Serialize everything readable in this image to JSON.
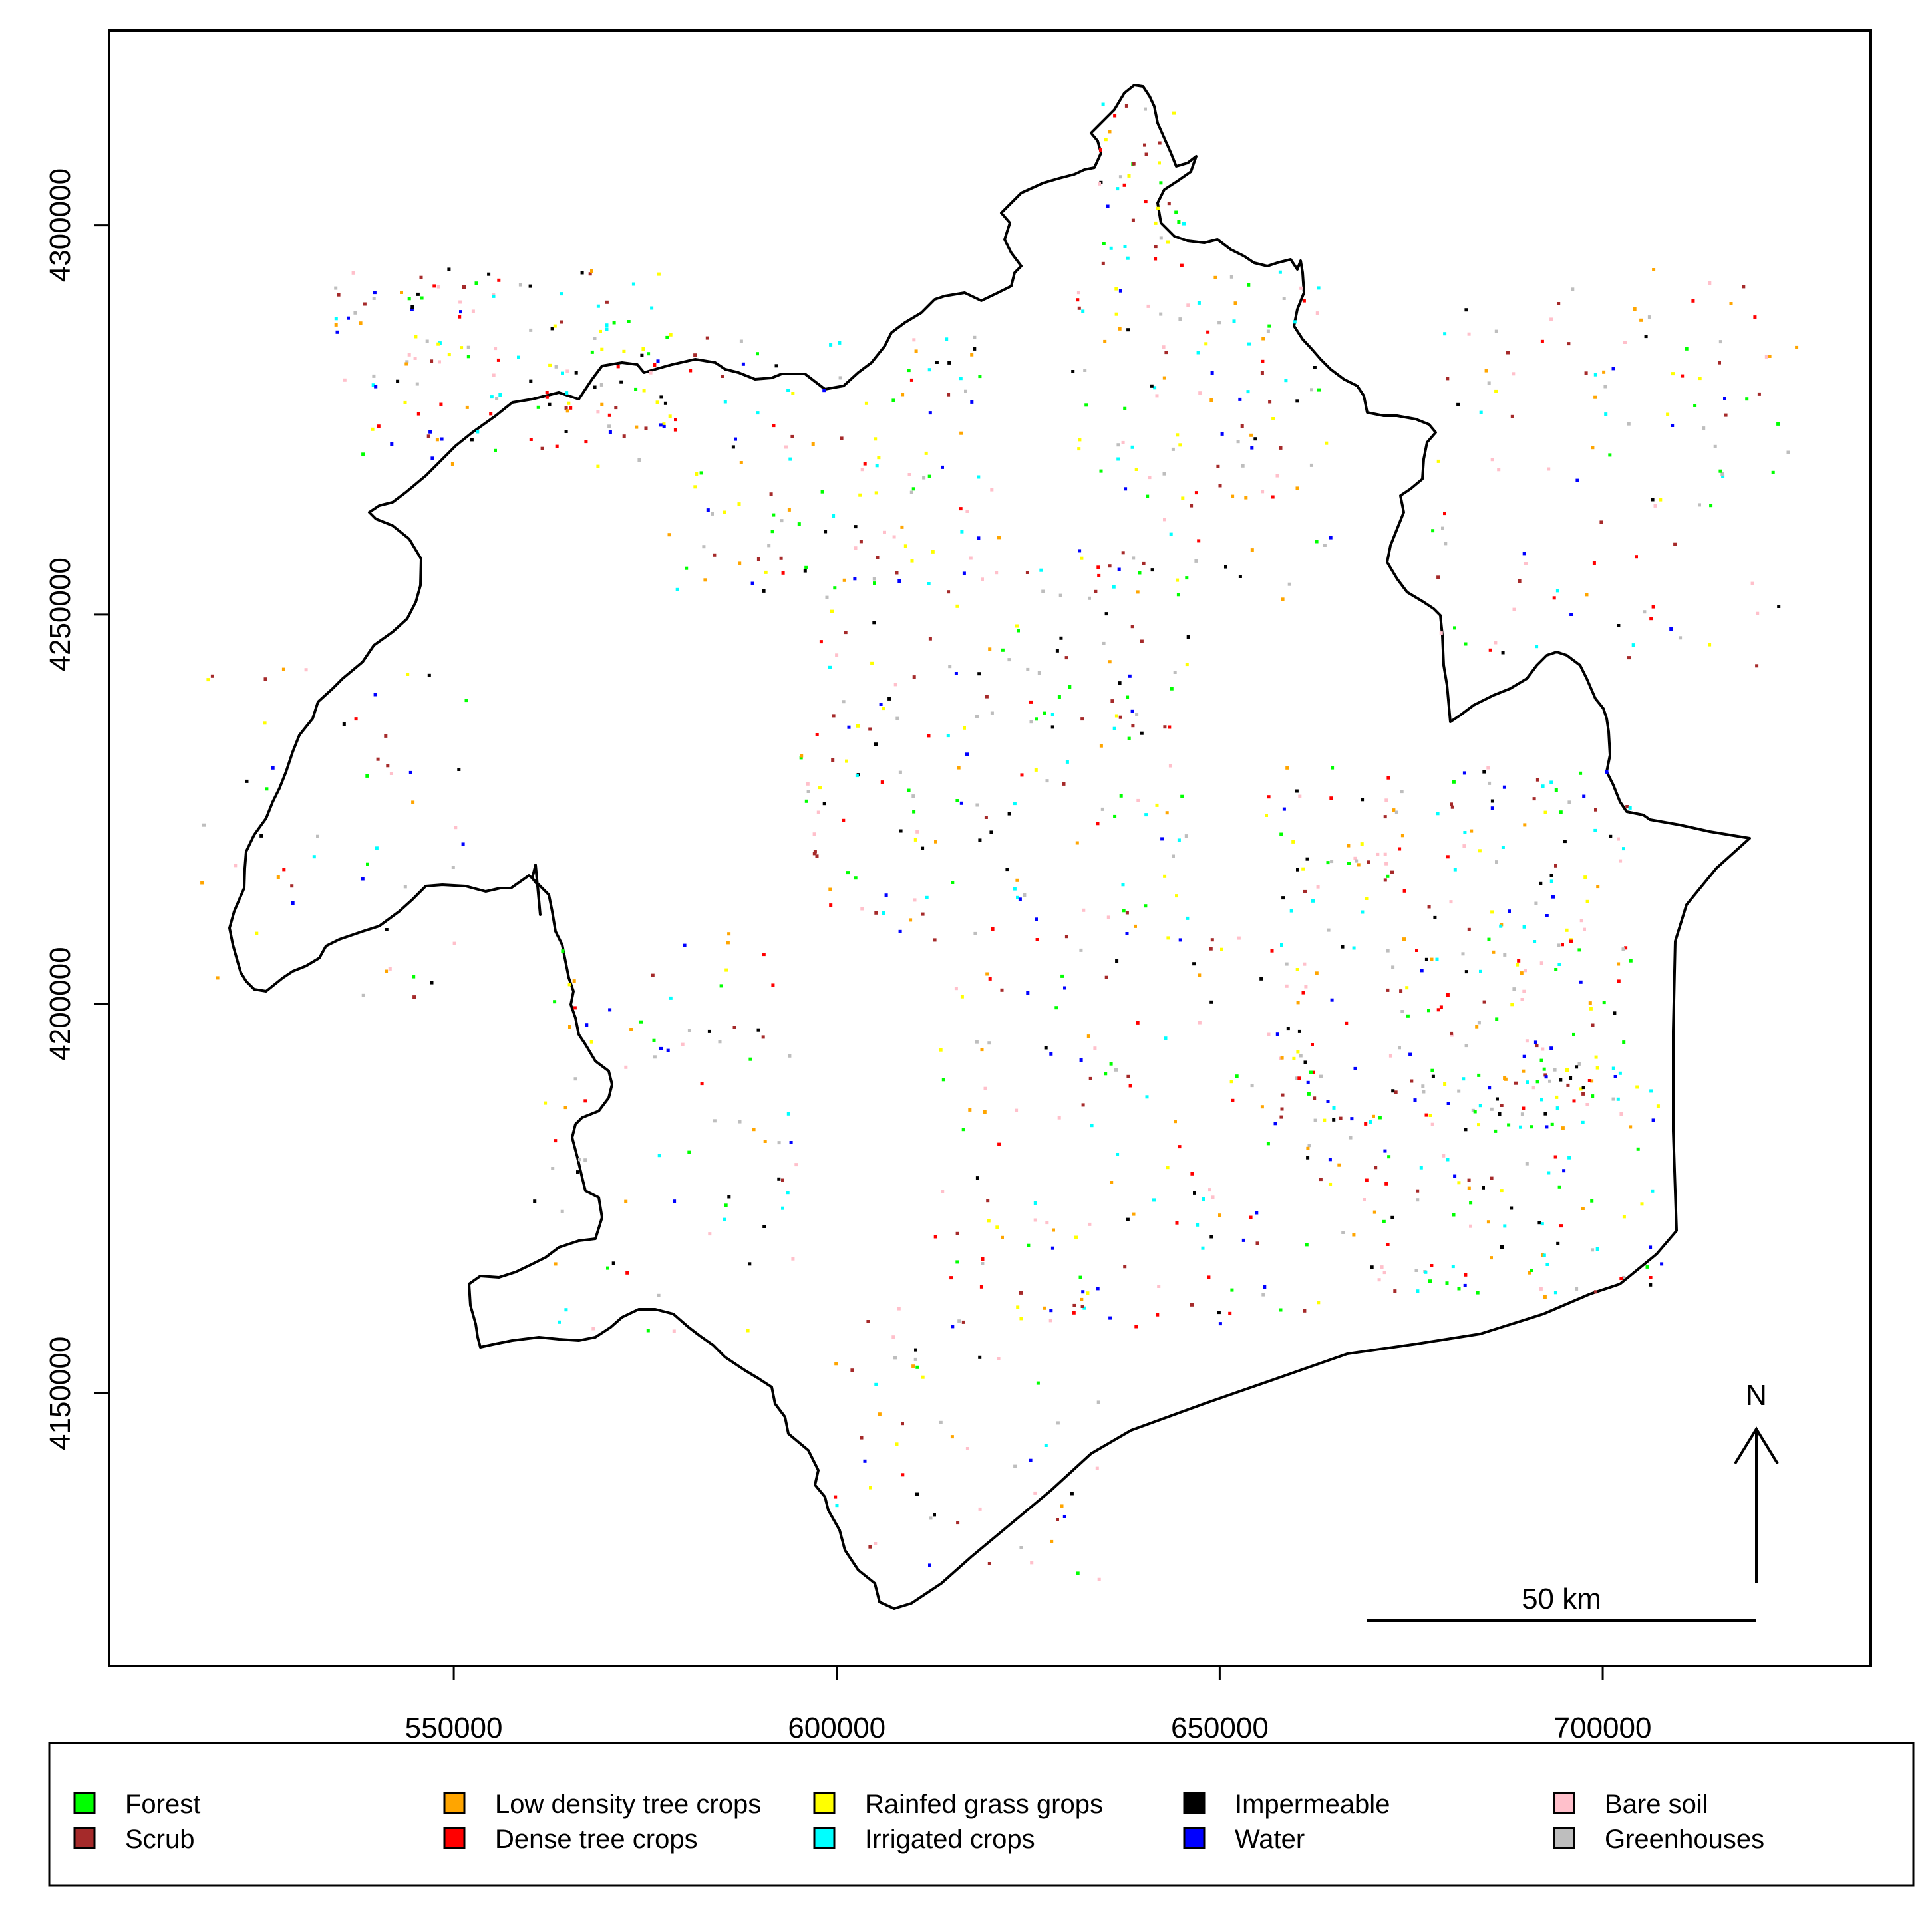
{
  "map": {
    "x_axis": {
      "range": [
        505000,
        735000
      ],
      "ticks": [
        {
          "value": 550000,
          "label": "550000"
        },
        {
          "value": 600000,
          "label": "600000"
        },
        {
          "value": 650000,
          "label": "650000"
        },
        {
          "value": 700000,
          "label": "700000"
        }
      ]
    },
    "y_axis": {
      "range": [
        4115000,
        4325000
      ],
      "ticks": [
        {
          "value": 4150000,
          "label": "4150000"
        },
        {
          "value": 4200000,
          "label": "4200000"
        },
        {
          "value": 4250000,
          "label": "4250000"
        },
        {
          "value": 4300000,
          "label": "4300000"
        }
      ]
    },
    "north_arrow": {
      "label": "N"
    },
    "scale_bar": {
      "label": "50 km",
      "length_m": 50000
    }
  },
  "legend": {
    "items": [
      {
        "label": "Forest",
        "color": "#00ff00"
      },
      {
        "label": "Scrub",
        "color": "#a52a2a"
      },
      {
        "label": "Low density tree crops",
        "color": "#ffa500"
      },
      {
        "label": "Dense tree crops",
        "color": "#ff0000"
      },
      {
        "label": "Rainfed grass grops",
        "color": "#ffff00"
      },
      {
        "label": "Irrigated crops",
        "color": "#00ffff"
      },
      {
        "label": "Impermeable",
        "color": "#000000"
      },
      {
        "label": "Water",
        "color": "#0000ff"
      },
      {
        "label": "Bare soil",
        "color": "#ffc0cb"
      },
      {
        "label": "Greenhouses",
        "color": "#bebebe"
      }
    ]
  }
}
